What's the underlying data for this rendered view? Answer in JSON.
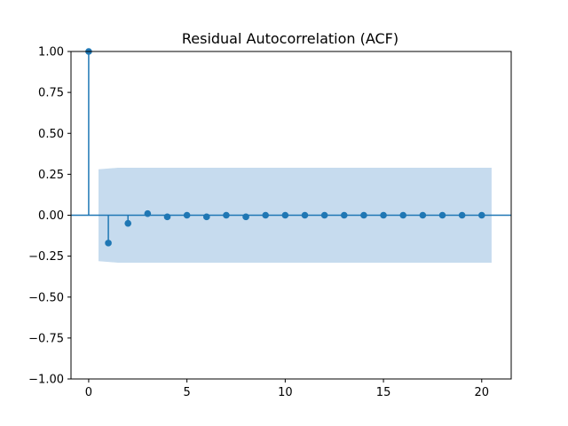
{
  "chart_data": {
    "type": "stem",
    "title": "Residual Autocorrelation (ACF)",
    "xlabel": "",
    "ylabel": "",
    "xlim": [
      -0.9,
      21.5
    ],
    "ylim": [
      -1.0,
      1.0
    ],
    "x_ticks": [
      0,
      5,
      10,
      15,
      20
    ],
    "x_tick_labels": [
      "0",
      "5",
      "10",
      "15",
      "20"
    ],
    "y_ticks": [
      1.0,
      0.75,
      0.5,
      0.25,
      0.0,
      -0.25,
      -0.5,
      -0.75,
      -1.0
    ],
    "y_tick_labels": [
      "1.00",
      "0.75",
      "0.50",
      "0.25",
      "0.00",
      "−0.25",
      "−0.50",
      "−0.75",
      "−1.00"
    ],
    "grid": false,
    "series": [
      {
        "x": [
          0,
          1,
          2,
          3,
          4,
          5,
          6,
          7,
          8,
          9,
          10,
          11,
          12,
          13,
          14,
          15,
          16,
          17,
          18,
          19,
          20
        ],
        "values": [
          1.0,
          -0.17,
          -0.05,
          0.01,
          -0.01,
          0.0,
          -0.01,
          0.0,
          -0.01,
          0.0,
          0.0,
          0.0,
          0.0,
          0.0,
          0.0,
          0.0,
          0.0,
          0.0,
          0.0,
          0.0,
          0.0
        ]
      }
    ],
    "confidence_band": {
      "x": [
        0.5,
        1.5,
        2.5,
        20.5
      ],
      "upper": [
        0.28,
        0.29,
        0.29,
        0.29
      ],
      "lower": [
        -0.28,
        -0.29,
        -0.29,
        -0.29
      ]
    },
    "colors": {
      "series": "#1f77b4",
      "band": "#c6dbee",
      "axis": "#000000"
    }
  }
}
